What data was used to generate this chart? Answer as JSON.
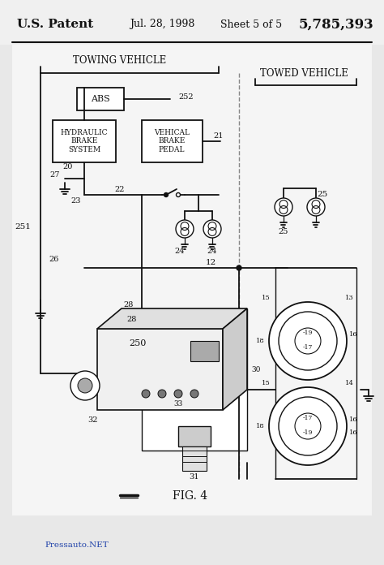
{
  "bg_color": "#e8e8e8",
  "inner_bg": "#f5f5f5",
  "line_color": "#111111",
  "title_patent": "U.S. Patent",
  "title_date": "Jul. 28, 1998",
  "title_sheet": "Sheet 5 of 5",
  "title_number": "5,785,393",
  "label_towing": "TOWING VEHICLE",
  "label_towed": "TOWED VEHICLE",
  "label_abs": "ABS",
  "label_hbs": "HYDRAULIC\nBRAKE\nSYSTEM",
  "label_vbp": "VEHICAL\nBRAKE\nPEDAL",
  "fig_label": "FIG. 4",
  "watermark": "Pressauto.NET",
  "watermark_color": "#2244aa"
}
